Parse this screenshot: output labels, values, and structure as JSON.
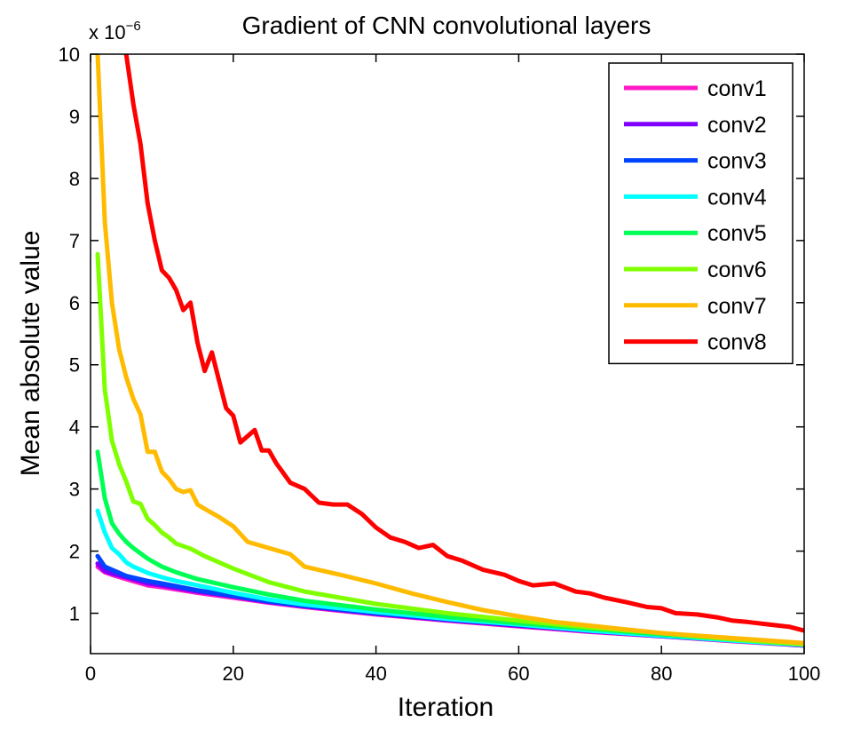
{
  "chart_data": {
    "type": "line",
    "title": "Gradient of CNN convolutional layers",
    "xlabel": "Iteration",
    "ylabel": "Mean absolute value",
    "y_scale_label": "x 10",
    "y_scale_exponent": "−6",
    "xlim": [
      0,
      100
    ],
    "ylim": [
      0.35,
      10
    ],
    "x_ticks": [
      0,
      20,
      40,
      60,
      80,
      100
    ],
    "y_ticks": [
      1,
      2,
      3,
      4,
      5,
      6,
      7,
      8,
      9,
      10
    ],
    "grid": false,
    "legend_position": "top-right",
    "units_note": "y values in units of 10^-6",
    "series": [
      {
        "name": "conv1",
        "color": "#ff19c8",
        "x": [
          1,
          2,
          3,
          5,
          8,
          10,
          15,
          20,
          25,
          30,
          40,
          50,
          60,
          70,
          80,
          90,
          100
        ],
        "y": [
          1.75,
          1.66,
          1.62,
          1.55,
          1.45,
          1.42,
          1.33,
          1.25,
          1.17,
          1.1,
          0.98,
          0.88,
          0.79,
          0.7,
          0.63,
          0.55,
          0.48
        ]
      },
      {
        "name": "conv2",
        "color": "#8000ff",
        "x": [
          1,
          2,
          3,
          5,
          8,
          10,
          15,
          20,
          25,
          30,
          40,
          50,
          60,
          70,
          80,
          90,
          100
        ],
        "y": [
          1.8,
          1.68,
          1.64,
          1.58,
          1.48,
          1.45,
          1.35,
          1.27,
          1.18,
          1.11,
          0.99,
          0.89,
          0.8,
          0.71,
          0.63,
          0.56,
          0.48
        ]
      },
      {
        "name": "conv3",
        "color": "#0044ff",
        "x": [
          1,
          2,
          3,
          5,
          8,
          10,
          15,
          20,
          25,
          30,
          40,
          50,
          60,
          70,
          80,
          90,
          100
        ],
        "y": [
          1.92,
          1.75,
          1.7,
          1.6,
          1.52,
          1.48,
          1.37,
          1.28,
          1.19,
          1.12,
          1.0,
          0.9,
          0.81,
          0.72,
          0.64,
          0.56,
          0.49
        ]
      },
      {
        "name": "conv4",
        "color": "#00ffff",
        "x": [
          1,
          2,
          3,
          4,
          5,
          6,
          8,
          10,
          12,
          15,
          20,
          25,
          30,
          40,
          50,
          60,
          70,
          80,
          90,
          100
        ],
        "y": [
          2.65,
          2.3,
          2.05,
          1.95,
          1.82,
          1.75,
          1.65,
          1.58,
          1.52,
          1.45,
          1.33,
          1.22,
          1.14,
          1.02,
          0.91,
          0.82,
          0.72,
          0.64,
          0.56,
          0.49
        ]
      },
      {
        "name": "conv5",
        "color": "#00ff55",
        "x": [
          1,
          2,
          3,
          4,
          5,
          6,
          8,
          10,
          12,
          15,
          20,
          25,
          30,
          40,
          50,
          60,
          70,
          80,
          90,
          100
        ],
        "y": [
          3.6,
          2.85,
          2.45,
          2.28,
          2.15,
          2.05,
          1.88,
          1.75,
          1.66,
          1.55,
          1.42,
          1.3,
          1.2,
          1.06,
          0.94,
          0.84,
          0.75,
          0.66,
          0.58,
          0.5
        ]
      },
      {
        "name": "conv6",
        "color": "#80ff00",
        "x": [
          1,
          2,
          3,
          4,
          5,
          6,
          7,
          8,
          9,
          10,
          11,
          12,
          14,
          16,
          18,
          20,
          25,
          30,
          40,
          50,
          60,
          70,
          80,
          90,
          100
        ],
        "y": [
          6.78,
          4.6,
          3.78,
          3.4,
          3.12,
          2.8,
          2.76,
          2.52,
          2.42,
          2.3,
          2.22,
          2.12,
          2.04,
          1.92,
          1.82,
          1.72,
          1.5,
          1.35,
          1.15,
          1.0,
          0.88,
          0.77,
          0.68,
          0.58,
          0.5
        ]
      },
      {
        "name": "conv7",
        "color": "#ffbb00",
        "x": [
          1,
          2,
          3,
          4,
          5,
          6,
          7,
          8,
          9,
          10,
          11,
          12,
          13,
          14,
          15,
          16,
          18,
          20,
          22,
          25,
          28,
          30,
          35,
          40,
          45,
          50,
          55,
          60,
          65,
          70,
          75,
          80,
          85,
          90,
          95,
          100
        ],
        "y": [
          10.0,
          7.3,
          6.0,
          5.25,
          4.8,
          4.45,
          4.2,
          3.6,
          3.6,
          3.28,
          3.16,
          3.0,
          2.95,
          2.98,
          2.75,
          2.68,
          2.55,
          2.4,
          2.15,
          2.05,
          1.95,
          1.75,
          1.62,
          1.48,
          1.32,
          1.18,
          1.05,
          0.95,
          0.86,
          0.8,
          0.74,
          0.68,
          0.64,
          0.6,
          0.56,
          0.52
        ]
      },
      {
        "name": "conv8",
        "color": "#ff0000",
        "x": [
          5,
          6,
          7,
          8,
          9,
          10,
          11,
          12,
          13,
          14,
          15,
          16,
          17,
          18,
          19,
          20,
          21,
          22,
          23,
          24,
          25,
          26,
          28,
          30,
          32,
          34,
          36,
          38,
          40,
          42,
          44,
          46,
          48,
          50,
          52,
          55,
          58,
          60,
          62,
          65,
          68,
          70,
          72,
          75,
          78,
          80,
          82,
          85,
          88,
          90,
          92,
          95,
          98,
          100
        ],
        "y": [
          10.0,
          9.2,
          8.55,
          7.6,
          7.0,
          6.52,
          6.4,
          6.2,
          5.88,
          6.0,
          5.35,
          4.9,
          5.2,
          4.75,
          4.3,
          4.18,
          3.75,
          3.85,
          3.95,
          3.62,
          3.62,
          3.42,
          3.1,
          3.0,
          2.78,
          2.75,
          2.75,
          2.6,
          2.38,
          2.22,
          2.15,
          2.05,
          2.1,
          1.92,
          1.85,
          1.7,
          1.62,
          1.52,
          1.45,
          1.48,
          1.35,
          1.32,
          1.25,
          1.18,
          1.1,
          1.08,
          1.0,
          0.98,
          0.93,
          0.88,
          0.86,
          0.82,
          0.78,
          0.72
        ]
      }
    ]
  }
}
